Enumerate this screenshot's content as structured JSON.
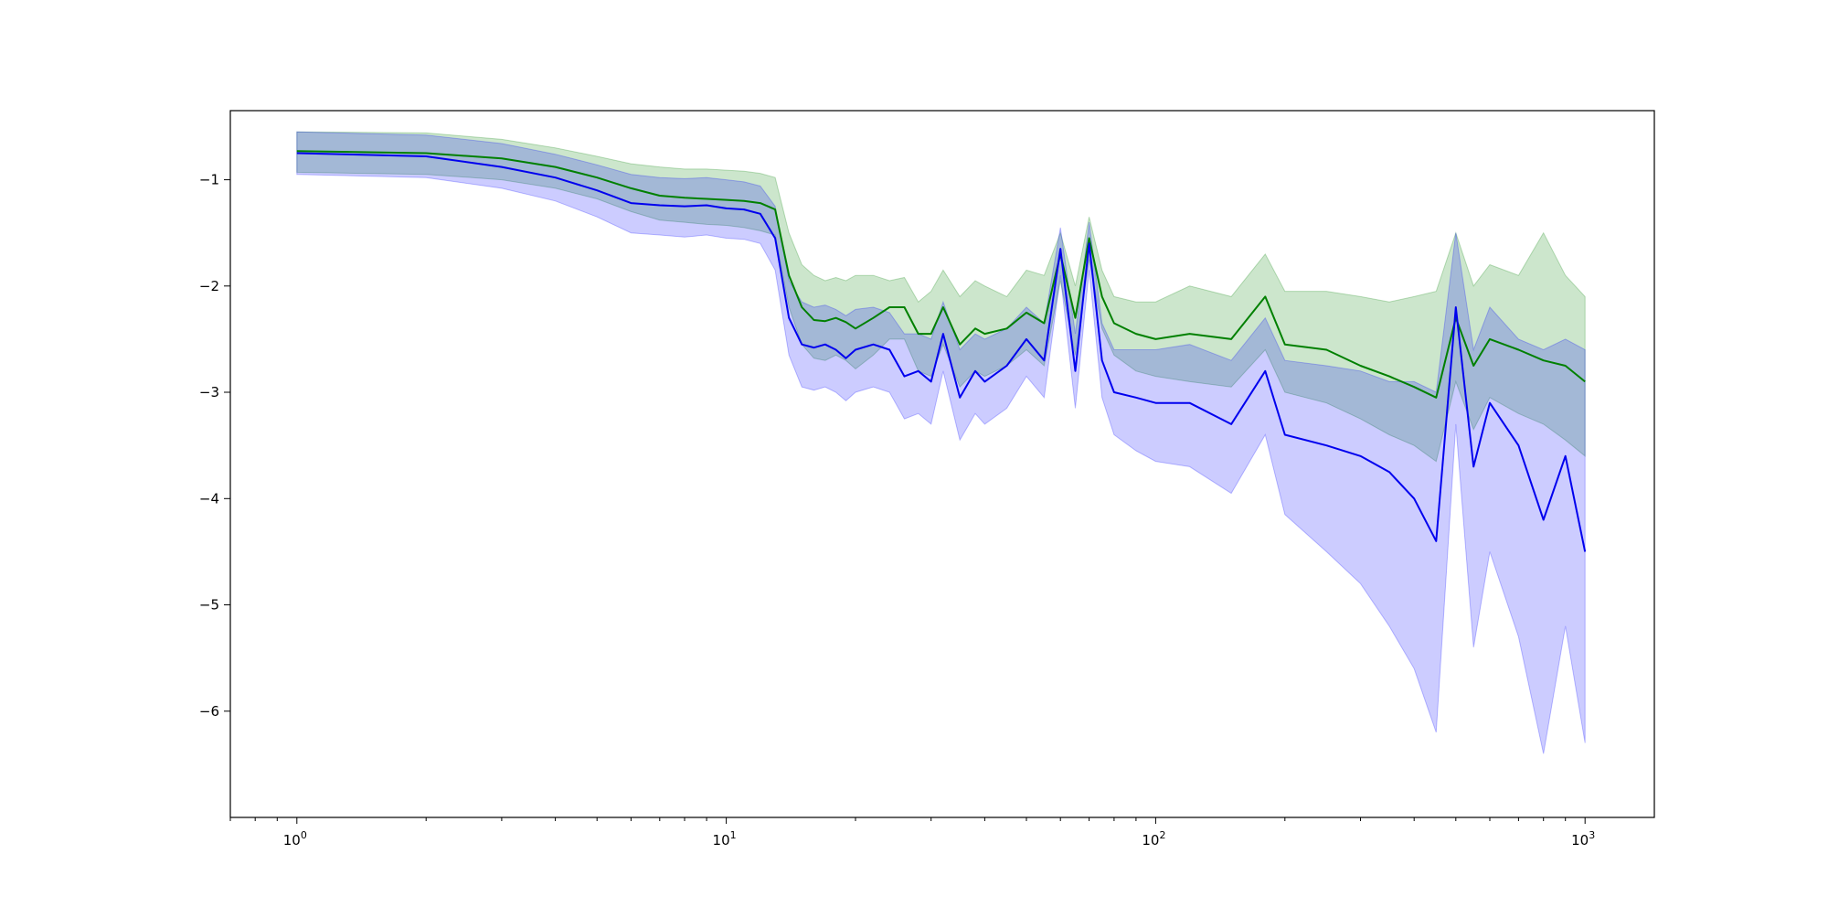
{
  "chart_data": {
    "type": "line",
    "title": "",
    "xlabel": "",
    "ylabel": "",
    "x_scale": "log",
    "xlim": [
      0.7,
      1450
    ],
    "ylim": [
      -7.0,
      -0.35
    ],
    "grid": false,
    "legend": "none",
    "x_tick_labels": [
      {
        "x": 1,
        "base": "10",
        "exp": "0"
      },
      {
        "x": 10,
        "base": "10",
        "exp": "1"
      },
      {
        "x": 100,
        "base": "10",
        "exp": "2"
      },
      {
        "x": 1000,
        "base": "10",
        "exp": "3"
      }
    ],
    "y_ticks": [
      -1,
      -2,
      -3,
      -4,
      -5,
      -6
    ],
    "y_tick_labels": [
      "−1",
      "−2",
      "−3",
      "−4",
      "−5",
      "−6"
    ],
    "series": [
      {
        "color": "#008000",
        "band_color": "#008000",
        "band_opacity": 0.2,
        "x": [
          1,
          2,
          3,
          4,
          5,
          6,
          7,
          8,
          9,
          10,
          11,
          12,
          13,
          14,
          15,
          16,
          17,
          18,
          19,
          20,
          22,
          24,
          26,
          28,
          30,
          32,
          35,
          38,
          40,
          45,
          50,
          55,
          60,
          65,
          70,
          75,
          80,
          90,
          100,
          120,
          150,
          180,
          200,
          250,
          300,
          350,
          400,
          450,
          500,
          550,
          600,
          700,
          800,
          900,
          1000
        ],
        "y": [
          -0.73,
          -0.75,
          -0.8,
          -0.88,
          -0.98,
          -1.08,
          -1.15,
          -1.17,
          -1.18,
          -1.19,
          -1.2,
          -1.22,
          -1.28,
          -1.9,
          -2.2,
          -2.32,
          -2.33,
          -2.3,
          -2.34,
          -2.4,
          -2.3,
          -2.2,
          -2.2,
          -2.45,
          -2.45,
          -2.2,
          -2.55,
          -2.4,
          -2.45,
          -2.4,
          -2.25,
          -2.35,
          -1.7,
          -2.3,
          -1.55,
          -2.1,
          -2.35,
          -2.45,
          -2.5,
          -2.45,
          -2.5,
          -2.1,
          -2.55,
          -2.6,
          -2.75,
          -2.85,
          -2.95,
          -3.05,
          -2.3,
          -2.75,
          -2.5,
          -2.6,
          -2.7,
          -2.75,
          -2.9
        ],
        "upper": [
          -0.55,
          -0.56,
          -0.62,
          -0.7,
          -0.78,
          -0.85,
          -0.88,
          -0.9,
          -0.9,
          -0.91,
          -0.92,
          -0.94,
          -0.98,
          -1.5,
          -1.8,
          -1.9,
          -1.95,
          -1.92,
          -1.95,
          -1.9,
          -1.9,
          -1.95,
          -1.92,
          -2.15,
          -2.05,
          -1.85,
          -2.1,
          -1.95,
          -2.0,
          -2.1,
          -1.85,
          -1.9,
          -1.5,
          -2.0,
          -1.35,
          -1.85,
          -2.1,
          -2.15,
          -2.15,
          -2.0,
          -2.1,
          -1.7,
          -2.05,
          -2.05,
          -2.1,
          -2.15,
          -2.1,
          -2.05,
          -1.5,
          -2.0,
          -1.8,
          -1.9,
          -1.5,
          -1.9,
          -2.1
        ],
        "lower": [
          -0.93,
          -0.95,
          -1.0,
          -1.08,
          -1.18,
          -1.3,
          -1.38,
          -1.4,
          -1.42,
          -1.43,
          -1.45,
          -1.48,
          -1.52,
          -2.2,
          -2.55,
          -2.68,
          -2.7,
          -2.65,
          -2.7,
          -2.78,
          -2.65,
          -2.5,
          -2.5,
          -2.8,
          -2.85,
          -2.55,
          -2.95,
          -2.8,
          -2.85,
          -2.75,
          -2.6,
          -2.75,
          -1.95,
          -2.65,
          -1.75,
          -2.4,
          -2.65,
          -2.8,
          -2.85,
          -2.9,
          -2.95,
          -2.6,
          -3.0,
          -3.1,
          -3.25,
          -3.4,
          -3.5,
          -3.65,
          -2.9,
          -3.35,
          -3.05,
          -3.2,
          -3.3,
          -3.45,
          -3.6
        ]
      },
      {
        "color": "#0000ee",
        "band_color": "#0000ff",
        "band_opacity": 0.2,
        "x": [
          1,
          2,
          3,
          4,
          5,
          6,
          7,
          8,
          9,
          10,
          11,
          12,
          13,
          14,
          15,
          16,
          17,
          18,
          19,
          20,
          22,
          24,
          26,
          28,
          30,
          32,
          35,
          38,
          40,
          45,
          50,
          55,
          60,
          65,
          70,
          75,
          80,
          90,
          100,
          120,
          150,
          180,
          200,
          250,
          300,
          350,
          400,
          450,
          500,
          550,
          600,
          700,
          800,
          900,
          1000
        ],
        "y": [
          -0.75,
          -0.78,
          -0.88,
          -0.98,
          -1.1,
          -1.22,
          -1.24,
          -1.25,
          -1.24,
          -1.27,
          -1.28,
          -1.32,
          -1.55,
          -2.3,
          -2.55,
          -2.58,
          -2.55,
          -2.6,
          -2.68,
          -2.6,
          -2.55,
          -2.6,
          -2.85,
          -2.8,
          -2.9,
          -2.45,
          -3.05,
          -2.8,
          -2.9,
          -2.75,
          -2.5,
          -2.7,
          -1.65,
          -2.8,
          -1.6,
          -2.7,
          -3.0,
          -3.05,
          -3.1,
          -3.1,
          -3.3,
          -2.8,
          -3.4,
          -3.5,
          -3.6,
          -3.75,
          -4.0,
          -4.4,
          -2.2,
          -3.7,
          -3.1,
          -3.5,
          -4.2,
          -3.6,
          -4.5
        ],
        "upper": [
          -0.55,
          -0.58,
          -0.66,
          -0.76,
          -0.86,
          -0.95,
          -0.98,
          -0.99,
          -0.98,
          -1.0,
          -1.02,
          -1.06,
          -1.25,
          -1.95,
          -2.15,
          -2.2,
          -2.18,
          -2.22,
          -2.28,
          -2.22,
          -2.2,
          -2.25,
          -2.45,
          -2.45,
          -2.5,
          -2.15,
          -2.6,
          -2.45,
          -2.5,
          -2.4,
          -2.2,
          -2.35,
          -1.45,
          -2.45,
          -1.4,
          -2.35,
          -2.6,
          -2.6,
          -2.6,
          -2.55,
          -2.7,
          -2.3,
          -2.7,
          -2.75,
          -2.8,
          -2.9,
          -2.9,
          -3.0,
          -1.5,
          -2.6,
          -2.2,
          -2.5,
          -2.6,
          -2.5,
          -2.6
        ],
        "lower": [
          -0.95,
          -0.98,
          -1.08,
          -1.2,
          -1.35,
          -1.5,
          -1.52,
          -1.54,
          -1.52,
          -1.55,
          -1.56,
          -1.6,
          -1.85,
          -2.65,
          -2.95,
          -2.98,
          -2.95,
          -3.0,
          -3.08,
          -3.0,
          -2.95,
          -3.0,
          -3.25,
          -3.2,
          -3.3,
          -2.8,
          -3.45,
          -3.2,
          -3.3,
          -3.15,
          -2.85,
          -3.05,
          -1.9,
          -3.15,
          -1.85,
          -3.05,
          -3.4,
          -3.55,
          -3.65,
          -3.7,
          -3.95,
          -3.4,
          -4.15,
          -4.5,
          -4.8,
          -5.2,
          -5.6,
          -6.2,
          -3.3,
          -5.4,
          -4.5,
          -5.3,
          -6.4,
          -5.2,
          -6.3
        ]
      }
    ]
  }
}
